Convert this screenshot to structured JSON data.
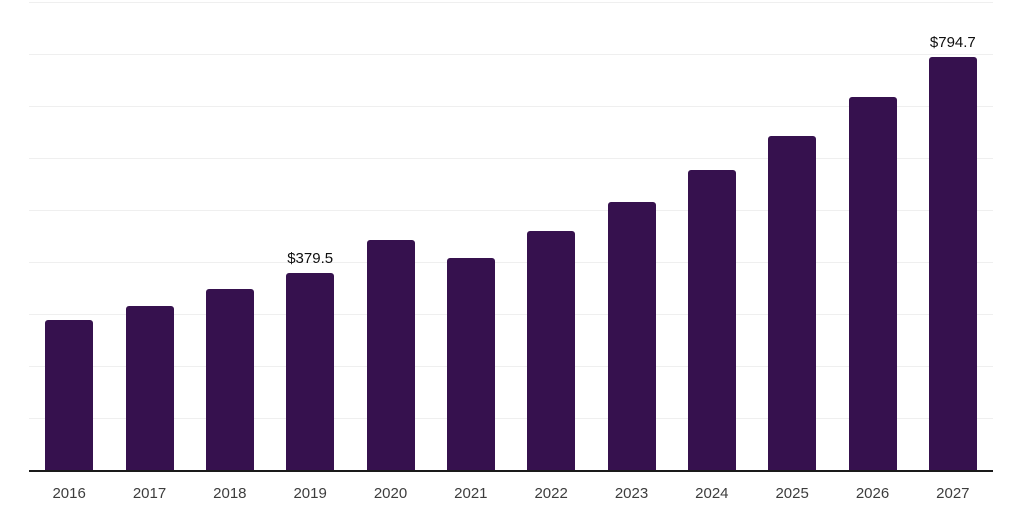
{
  "chart_data": {
    "type": "bar",
    "title": "",
    "xlabel": "",
    "ylabel": "",
    "categories": [
      "2016",
      "2017",
      "2018",
      "2019",
      "2020",
      "2021",
      "2022",
      "2023",
      "2024",
      "2025",
      "2026",
      "2027"
    ],
    "values": [
      288,
      316,
      348,
      379.5,
      442,
      407,
      460,
      515,
      577,
      643,
      717,
      794.7
    ],
    "data_labels": [
      "",
      "",
      "",
      "$379.5",
      "",
      "",
      "",
      "",
      "",
      "",
      "",
      "$794.7"
    ],
    "ylim": [
      0,
      900
    ],
    "gridline_step": 100,
    "grid": true,
    "legend": false,
    "colors": {
      "bar": "#36114e",
      "grid": "#efefef",
      "axis": "#1a1a1a",
      "tick_label": "#3d3d3d",
      "data_label": "#0f0f0f"
    }
  }
}
